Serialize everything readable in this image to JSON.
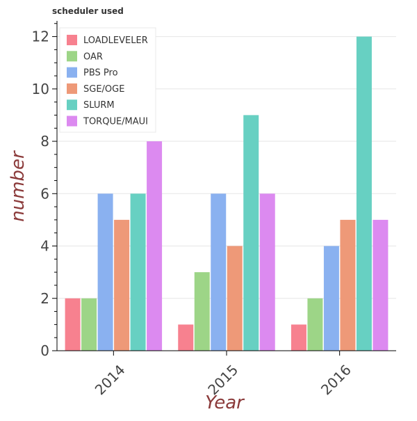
{
  "chart_data": {
    "type": "bar",
    "title": "scheduler used",
    "xlabel": "Year",
    "ylabel": "number",
    "categories": [
      "2014",
      "2015",
      "2016"
    ],
    "ylim": [
      0,
      12.6
    ],
    "yticks": [
      0,
      2,
      4,
      6,
      8,
      10,
      12
    ],
    "grid": true,
    "legend_position": "top-left",
    "series": [
      {
        "name": "LOADLEVELER",
        "color": "#f7818f",
        "values": [
          2,
          1,
          1
        ]
      },
      {
        "name": "OAR",
        "color": "#9dd587",
        "values": [
          2,
          3,
          2
        ]
      },
      {
        "name": "PBS Pro",
        "color": "#8ab1f0",
        "values": [
          6,
          6,
          4
        ]
      },
      {
        "name": "SGE/OGE",
        "color": "#ee9978",
        "values": [
          5,
          4,
          5
        ]
      },
      {
        "name": "SLURM",
        "color": "#67d0c2",
        "values": [
          6,
          9,
          12
        ]
      },
      {
        "name": "TORQUE/MAUI",
        "color": "#dc8af0",
        "values": [
          8,
          6,
          5
        ]
      }
    ]
  }
}
